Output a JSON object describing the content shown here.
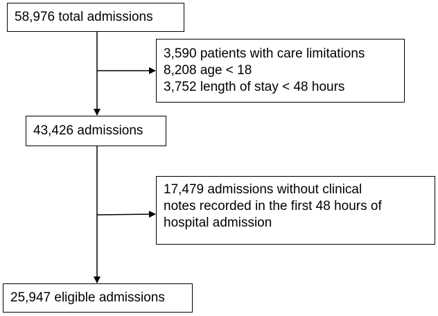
{
  "nodes": {
    "total": {
      "lines": [
        "58,976 total admissions"
      ]
    },
    "exclusion_1": {
      "lines": [
        "3,590 patients with care limitations",
        "8,208 age < 18",
        "3,752 length of stay < 48 hours"
      ]
    },
    "intermediate": {
      "lines": [
        "43,426 admissions"
      ]
    },
    "exclusion_2": {
      "lines": [
        "17,479 admissions without clinical",
        "notes recorded in the first 48 hours of",
        "hospital admission"
      ]
    },
    "final": {
      "lines": [
        "25,947 eligible admissions"
      ]
    }
  },
  "colors": {
    "stroke": "#000000",
    "background": "#ffffff",
    "text": "#000000"
  }
}
